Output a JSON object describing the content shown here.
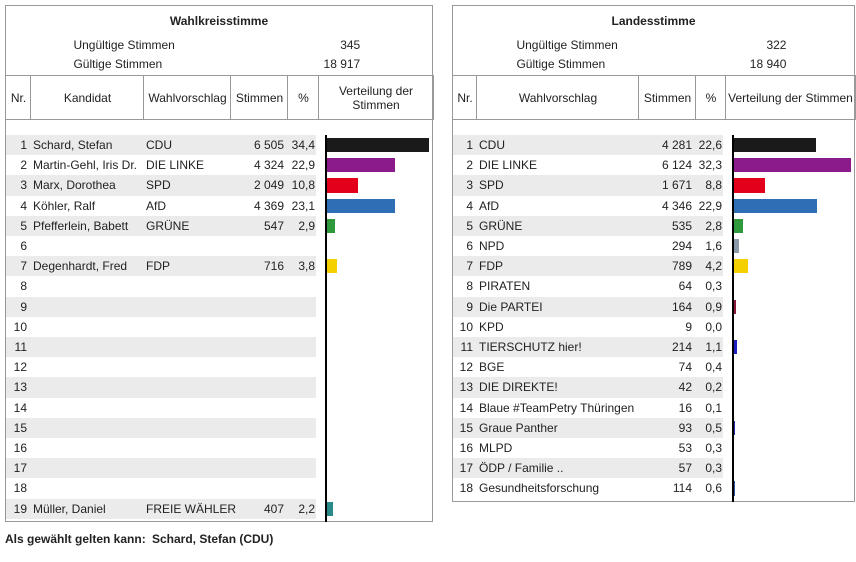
{
  "panels": [
    {
      "title": "Wahlkreisstimme",
      "invalid_label": "Ungültige Stimmen",
      "invalid": "345",
      "valid_label": "Gültige Stimmen",
      "valid": "18 917",
      "headers": [
        "Nr.",
        "Kandidat",
        "Wahlvorschlag",
        "Stimmen",
        "%",
        "Verteilung der Stimmen"
      ],
      "rows": [
        {
          "nr": 1,
          "name": "Schard, Stefan",
          "party": "CDU",
          "votes": "6 505",
          "pct": {
            "value": 34.4,
            "label": "34,4"
          },
          "color": "#1a1a1a"
        },
        {
          "nr": 2,
          "name": "Martin-Gehl, Iris Dr.",
          "party": "DIE LINKE",
          "votes": "4 324",
          "pct": {
            "value": 22.9,
            "label": "22,9"
          },
          "color": "#8b1a8b"
        },
        {
          "nr": 3,
          "name": "Marx, Dorothea",
          "party": "SPD",
          "votes": "2 049",
          "pct": {
            "value": 10.8,
            "label": "10,8"
          },
          "color": "#e3001b"
        },
        {
          "nr": 4,
          "name": "Köhler, Ralf",
          "party": "AfD",
          "votes": "4 369",
          "pct": {
            "value": 23.1,
            "label": "23,1"
          },
          "color": "#2f6db5"
        },
        {
          "nr": 5,
          "name": "Pfefferlein, Babett",
          "party": "GRÜNE",
          "votes": "547",
          "pct": {
            "value": 2.9,
            "label": "2,9"
          },
          "color": "#2e9a3c"
        },
        {
          "nr": 6
        },
        {
          "nr": 7,
          "name": "Degenhardt, Fred",
          "party": "FDP",
          "votes": "716",
          "pct": {
            "value": 3.8,
            "label": "3,8"
          },
          "color": "#f5d000"
        },
        {
          "nr": 8
        },
        {
          "nr": 9
        },
        {
          "nr": 10
        },
        {
          "nr": 11
        },
        {
          "nr": 12
        },
        {
          "nr": 13
        },
        {
          "nr": 14
        },
        {
          "nr": 15
        },
        {
          "nr": 16
        },
        {
          "nr": 17
        },
        {
          "nr": 18
        },
        {
          "nr": 19,
          "name": "Müller, Daniel",
          "party": "FREIE WÄHLER",
          "votes": "407",
          "pct": {
            "value": 2.2,
            "label": "2,2"
          },
          "color": "#2a8a8a"
        }
      ]
    },
    {
      "title": "Landesstimme",
      "invalid_label": "Ungültige Stimmen",
      "invalid": "322",
      "valid_label": "Gültige Stimmen",
      "valid": "18 940",
      "headers": [
        "Nr.",
        "Wahlvorschlag",
        "Stimmen",
        "%",
        "Verteilung der Stimmen"
      ],
      "rows": [
        {
          "nr": 1,
          "party": "CDU",
          "votes": "4 281",
          "pct": {
            "value": 22.6,
            "label": "22,6"
          },
          "color": "#1a1a1a"
        },
        {
          "nr": 2,
          "party": "DIE LINKE",
          "votes": "6 124",
          "pct": {
            "value": 32.3,
            "label": "32,3"
          },
          "color": "#8b1a8b"
        },
        {
          "nr": 3,
          "party": "SPD",
          "votes": "1 671",
          "pct": {
            "value": 8.8,
            "label": "8,8"
          },
          "color": "#e3001b"
        },
        {
          "nr": 4,
          "party": "AfD",
          "votes": "4 346",
          "pct": {
            "value": 22.9,
            "label": "22,9"
          },
          "color": "#2f6db5"
        },
        {
          "nr": 5,
          "party": "GRÜNE",
          "votes": "535",
          "pct": {
            "value": 2.8,
            "label": "2,8"
          },
          "color": "#2e9a3c"
        },
        {
          "nr": 6,
          "party": "NPD",
          "votes": "294",
          "pct": {
            "value": 1.6,
            "label": "1,6"
          },
          "color": "#8a9aa8"
        },
        {
          "nr": 7,
          "party": "FDP",
          "votes": "789",
          "pct": {
            "value": 4.2,
            "label": "4,2"
          },
          "color": "#f5d000"
        },
        {
          "nr": 8,
          "party": "PIRATEN",
          "votes": "64",
          "pct": {
            "value": 0.3,
            "label": "0,3"
          },
          "color": "#f08000"
        },
        {
          "nr": 9,
          "party": "Die PARTEI",
          "votes": "164",
          "pct": {
            "value": 0.9,
            "label": "0,9"
          },
          "color": "#8b1a3a"
        },
        {
          "nr": 10,
          "party": "KPD",
          "votes": "9",
          "pct": {
            "value": 0,
            "label": "0,0"
          },
          "color": "#c00000"
        },
        {
          "nr": 11,
          "party": "TIERSCHUTZ hier!",
          "votes": "214",
          "pct": {
            "value": 1.1,
            "label": "1,1"
          },
          "color": "#2020c0"
        },
        {
          "nr": 12,
          "party": "BGE",
          "votes": "74",
          "pct": {
            "value": 0.4,
            "label": "0,4"
          },
          "color": "#4040a0"
        },
        {
          "nr": 13,
          "party": "DIE DIREKTE!",
          "votes": "42",
          "pct": {
            "value": 0.2,
            "label": "0,2"
          },
          "color": "#606060"
        },
        {
          "nr": 14,
          "party": "Blaue #TeamPetry Thüringen",
          "votes": "16",
          "pct": {
            "value": 0.1,
            "label": "0,1"
          },
          "color": "#1a3a8a"
        },
        {
          "nr": 15,
          "party": "Graue Panther",
          "votes": "93",
          "pct": {
            "value": 0.5,
            "label": "0,5"
          },
          "color": "#2030a0"
        },
        {
          "nr": 16,
          "party": "MLPD",
          "votes": "53",
          "pct": {
            "value": 0.3,
            "label": "0,3"
          },
          "color": "#c00000"
        },
        {
          "nr": 17,
          "party": "ÖDP / Familie ..",
          "votes": "57",
          "pct": {
            "value": 0.3,
            "label": "0,3"
          },
          "color": "#f07000"
        },
        {
          "nr": 18,
          "party": "Gesundheitsforschung",
          "votes": "114",
          "pct": {
            "value": 0.6,
            "label": "0,6"
          },
          "color": "#3050a0"
        }
      ]
    }
  ],
  "footer": {
    "label": "Als gewählt gelten kann:",
    "value": "Schard, Stefan (CDU)"
  }
}
